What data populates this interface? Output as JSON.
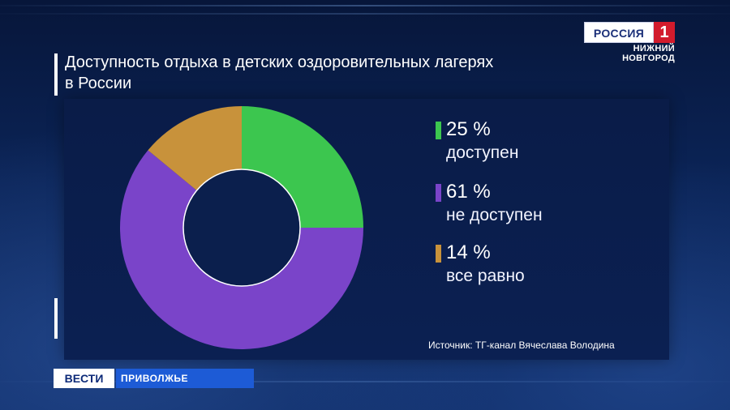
{
  "broadcast": {
    "channel_logo": "РОССИЯ",
    "channel_number": "1",
    "region_line1": "НИЖНИЙ",
    "region_line2": "НОВГОРОД",
    "program": "ВЕСТИ",
    "program_region": "ПРИВОЛЖЬЕ",
    "colors": {
      "logo_red": "#d21b2c",
      "logo_white": "#ffffff",
      "program_blue": "#1d5bd6",
      "background": "#0a1d44"
    }
  },
  "chart_data": {
    "type": "pie",
    "style": "donut",
    "title_line1": "Доступность отдыха в детских оздоровительных лагерях",
    "title_line2": "в России",
    "slices": [
      {
        "value_label": "25 %",
        "label": "доступен",
        "value": 25,
        "color": "#3cc64f"
      },
      {
        "value_label": "61 %",
        "label": "не доступен",
        "value": 61,
        "color": "#7a44c9"
      },
      {
        "value_label": "14 %",
        "label": "все равно",
        "value": 14,
        "color": "#c8923b"
      }
    ],
    "legend_position": "right",
    "source": "Источник: ТГ-канал Вячеслава Володина"
  }
}
